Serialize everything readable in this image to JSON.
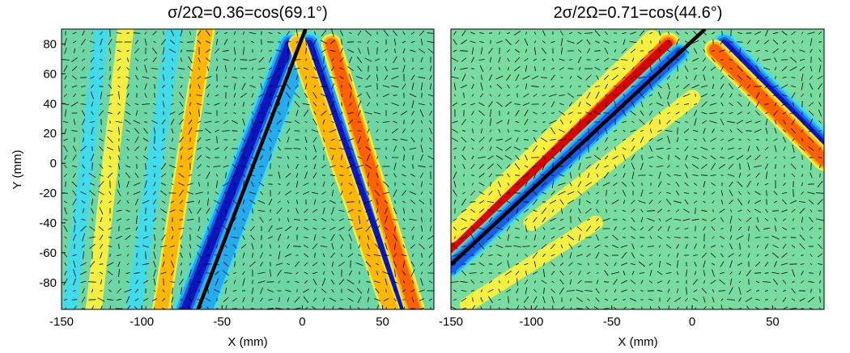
{
  "chart_data": [
    {
      "type": "heatmap",
      "title": "σ/2Ω=0.36=cos(69.1°)",
      "xlabel": "X (mm)",
      "ylabel": "Y (mm)",
      "xlim": [
        -150,
        82
      ],
      "ylim": [
        -98,
        90
      ],
      "xticks": [
        -150,
        -100,
        -50,
        0,
        50
      ],
      "yticks": [
        80,
        60,
        40,
        20,
        0,
        -20,
        -40,
        -60,
        -80
      ],
      "overlay": "velocity vector field (quiver)",
      "colormap": "jet",
      "reference_line": {
        "from": [
          -65,
          -98
        ],
        "to": [
          2,
          90
        ]
      },
      "bands": [
        {
          "from": [
            -68,
            -98
          ],
          "to": [
            -2,
            80
          ],
          "polarity": "positive",
          "amplitude": 1.0
        },
        {
          "from": [
            -73,
            -98
          ],
          "to": [
            -8,
            80
          ],
          "polarity": "negative",
          "amplitude": 0.9
        },
        {
          "from": [
            -60,
            -98
          ],
          "to": [
            2,
            80
          ],
          "polarity": "negative",
          "amplitude": 0.45
        },
        {
          "from": [
            62,
            -98
          ],
          "to": [
            4,
            80
          ],
          "polarity": "negative",
          "amplitude": 0.95
        },
        {
          "from": [
            55,
            -98
          ],
          "to": [
            -3,
            80
          ],
          "polarity": "positive",
          "amplitude": 0.55
        },
        {
          "from": [
            70,
            -98
          ],
          "to": [
            18,
            80
          ],
          "polarity": "positive",
          "amplitude": 0.7
        },
        {
          "from": [
            -88,
            -98
          ],
          "to": [
            -60,
            90
          ],
          "polarity": "positive",
          "amplitude": 0.5
        },
        {
          "from": [
            -105,
            -98
          ],
          "to": [
            -80,
            90
          ],
          "polarity": "negative",
          "amplitude": 0.35
        },
        {
          "from": [
            -130,
            -98
          ],
          "to": [
            -110,
            90
          ],
          "polarity": "positive",
          "amplitude": 0.35
        },
        {
          "from": [
            -145,
            -98
          ],
          "to": [
            -125,
            90
          ],
          "polarity": "negative",
          "amplitude": 0.25
        }
      ]
    },
    {
      "type": "heatmap",
      "title": "2σ/2Ω=0.71=cos(44.6°)",
      "xlabel": "X (mm)",
      "ylabel": "",
      "xlim": [
        -150,
        82
      ],
      "ylim": [
        -98,
        90
      ],
      "xticks": [
        -150,
        -100,
        -50,
        0,
        50
      ],
      "yticks": [],
      "overlay": "velocity vector field (quiver)",
      "colormap": "jet",
      "reference_line": {
        "from": [
          -150,
          -68
        ],
        "to": [
          8,
          90
        ]
      },
      "bands": [
        {
          "from": [
            -150,
            -58
          ],
          "to": [
            -15,
            80
          ],
          "polarity": "positive",
          "amplitude": 0.95
        },
        {
          "from": [
            -150,
            -70
          ],
          "to": [
            -8,
            74
          ],
          "polarity": "negative",
          "amplitude": 0.7
        },
        {
          "from": [
            -150,
            -48
          ],
          "to": [
            -25,
            84
          ],
          "polarity": "positive",
          "amplitude": 0.35
        },
        {
          "from": [
            82,
            12
          ],
          "to": [
            20,
            80
          ],
          "polarity": "negative",
          "amplitude": 0.9
        },
        {
          "from": [
            82,
            2
          ],
          "to": [
            14,
            76
          ],
          "polarity": "positive",
          "amplitude": 0.75
        },
        {
          "from": [
            -100,
            -40
          ],
          "to": [
            0,
            44
          ],
          "polarity": "positive",
          "amplitude": 0.35
        },
        {
          "from": [
            -140,
            -95
          ],
          "to": [
            -60,
            -40
          ],
          "polarity": "positive",
          "amplitude": 0.25
        }
      ]
    }
  ]
}
